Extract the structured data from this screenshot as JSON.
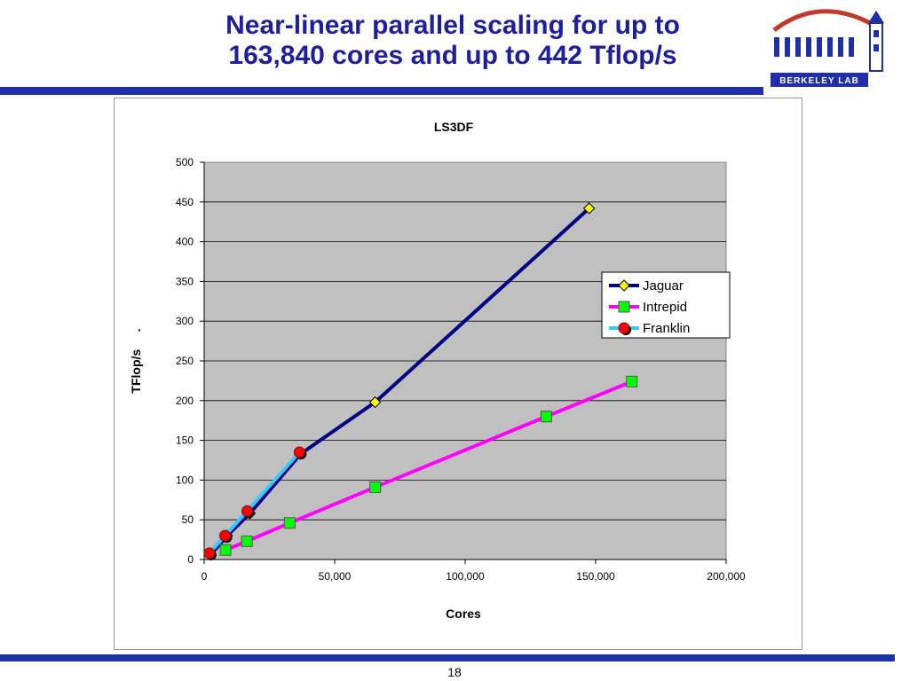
{
  "slide": {
    "title_line1": "Near-linear parallel scaling for up to",
    "title_line2": "163,840 cores and up to 442 Tflop/s",
    "logo_text": "BERKELEY LAB",
    "page_number": "18"
  },
  "colors": {
    "title": "#1f1f9e",
    "rule": "#1f2fa8",
    "plot_bg": "#c0c0c0",
    "jaguar_line": "#000080",
    "jaguar_marker": "#ffff00",
    "intrepid_line": "#ff00ff",
    "intrepid_marker": "#00ff00",
    "franklin_line": "#33ccff",
    "franklin_marker": "#ff0000"
  },
  "chart_data": {
    "type": "line",
    "title": "LS3DF",
    "xlabel": "Cores",
    "ylabel": "TFlop/s     .",
    "xlim": [
      0,
      200000
    ],
    "ylim": [
      0,
      500
    ],
    "x_ticks": [
      0,
      50000,
      100000,
      150000,
      200000
    ],
    "x_tick_labels": [
      "0",
      "50,000",
      "100,000",
      "150,000",
      "200,000"
    ],
    "y_ticks": [
      0,
      50,
      100,
      150,
      200,
      250,
      300,
      350,
      400,
      450,
      500
    ],
    "y_tick_labels": [
      "0",
      "50",
      "100",
      "150",
      "200",
      "250",
      "300",
      "350",
      "400",
      "450",
      "500"
    ],
    "grid": "horizontal",
    "legend_position": "right",
    "series": [
      {
        "name": "Jaguar",
        "marker": "diamond",
        "x": [
          2500,
          8800,
          17500,
          37000,
          65500,
          147500
        ],
        "y": [
          6,
          30,
          58,
          133,
          198,
          442
        ]
      },
      {
        "name": "Intrepid",
        "marker": "square",
        "x": [
          8192,
          16384,
          32768,
          65536,
          131072,
          163840
        ],
        "y": [
          12,
          23,
          46,
          91,
          180,
          224
        ]
      },
      {
        "name": "Franklin",
        "marker": "circle",
        "x": [
          2000,
          8000,
          16500,
          36500
        ],
        "y": [
          8,
          30,
          61,
          135
        ]
      }
    ]
  }
}
